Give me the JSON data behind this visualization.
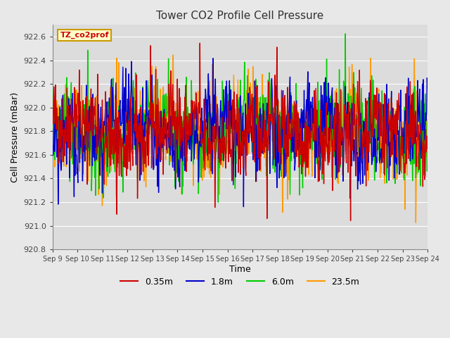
{
  "title": "Tower CO2 Profile Cell Pressure",
  "ylabel": "Cell Pressure (mBar)",
  "xlabel": "Time",
  "ylim": [
    920.8,
    922.7
  ],
  "xlim_days": 15,
  "tick_labels": [
    "Sep 9",
    "Sep 10",
    "Sep 11",
    "Sep 12",
    "Sep 13",
    "Sep 14",
    "Sep 15",
    "Sep 16",
    "Sep 17",
    "Sep 18",
    "Sep 19",
    "Sep 20",
    "Sep 21",
    "Sep 22",
    "Sep 23",
    "Sep 24"
  ],
  "series_labels": [
    "0.35m",
    "1.8m",
    "6.0m",
    "23.5m"
  ],
  "series_colors": [
    "#cc0000",
    "#0000cc",
    "#00cc00",
    "#ff9900"
  ],
  "annotation_text": "TZ_co2prof",
  "annotation_color": "#cc0000",
  "annotation_bg": "#ffffcc",
  "annotation_edge": "#cc9900",
  "fig_bg": "#e8e8e8",
  "plot_bg": "#dcdcdc",
  "grid_color": "#ffffff",
  "yticks": [
    920.8,
    921.0,
    921.2,
    921.4,
    921.6,
    921.8,
    922.0,
    922.2,
    922.4,
    922.6
  ],
  "n_points": 800,
  "base_pressure": 921.8,
  "seed": 42,
  "linewidth": 1.0
}
